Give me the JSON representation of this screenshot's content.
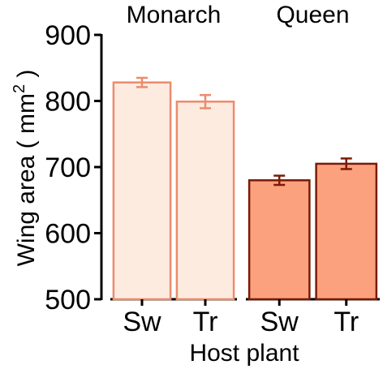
{
  "chart_data": {
    "type": "bar",
    "xlabel": "Host plant",
    "ylabel": "Wing area ( mm² )",
    "ylabel_main": "Wing area ( mm",
    "ylabel_sup": "2",
    "ylabel_close": " )",
    "ylim": [
      500,
      900
    ],
    "yticks": [
      500,
      600,
      700,
      800,
      900
    ],
    "categories": [
      "Sw",
      "Tr"
    ],
    "panels": [
      {
        "title": "Monarch",
        "fill": "#fdebe0",
        "edge": "#ec8c6c",
        "bars": [
          {
            "category": "Sw",
            "value": 828,
            "error": 7
          },
          {
            "category": "Tr",
            "value": 799,
            "error": 10
          }
        ]
      },
      {
        "title": "Queen",
        "fill": "#fca17e",
        "edge": "#7a1b06",
        "bars": [
          {
            "category": "Sw",
            "value": 680,
            "error": 7
          },
          {
            "category": "Tr",
            "value": 705,
            "error": 8
          }
        ]
      }
    ]
  }
}
